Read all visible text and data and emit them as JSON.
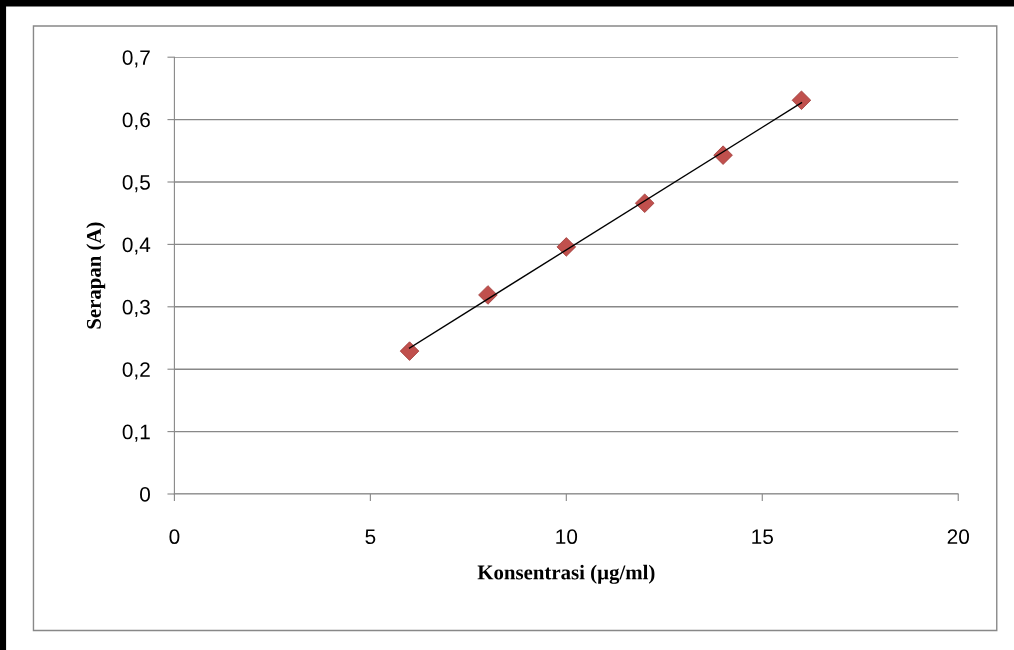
{
  "chart_data": {
    "type": "scatter",
    "xlabel": "Konsentrasi (µg/ml)",
    "ylabel": "Serapan (A)",
    "series": [
      {
        "color": "#c0504d",
        "marker": "diamond",
        "x": [
          6,
          8,
          10,
          12,
          14,
          16
        ],
        "values": [
          0.229,
          0.319,
          0.396,
          0.466,
          0.543,
          0.631
        ]
      },
      {
        "type": "line",
        "color": "#000000",
        "marker": "none",
        "x": [
          6,
          16
        ],
        "values": [
          0.234,
          0.627
        ]
      }
    ],
    "xlim": [
      0,
      20
    ],
    "xticks": [
      0,
      5,
      10,
      15,
      20
    ],
    "ylim": [
      0,
      0.7
    ],
    "yticks": [
      {
        "value": 0,
        "label": "0"
      },
      {
        "value": 0.1,
        "label": "0,1"
      },
      {
        "value": 0.2,
        "label": "0,2"
      },
      {
        "value": 0.3,
        "label": "0,3"
      },
      {
        "value": 0.4,
        "label": "0,4"
      },
      {
        "value": 0.5,
        "label": "0,5"
      },
      {
        "value": 0.6,
        "label": "0,6"
      },
      {
        "value": 0.7,
        "label": "0,7"
      }
    ],
    "grid": "y",
    "legend": false
  }
}
